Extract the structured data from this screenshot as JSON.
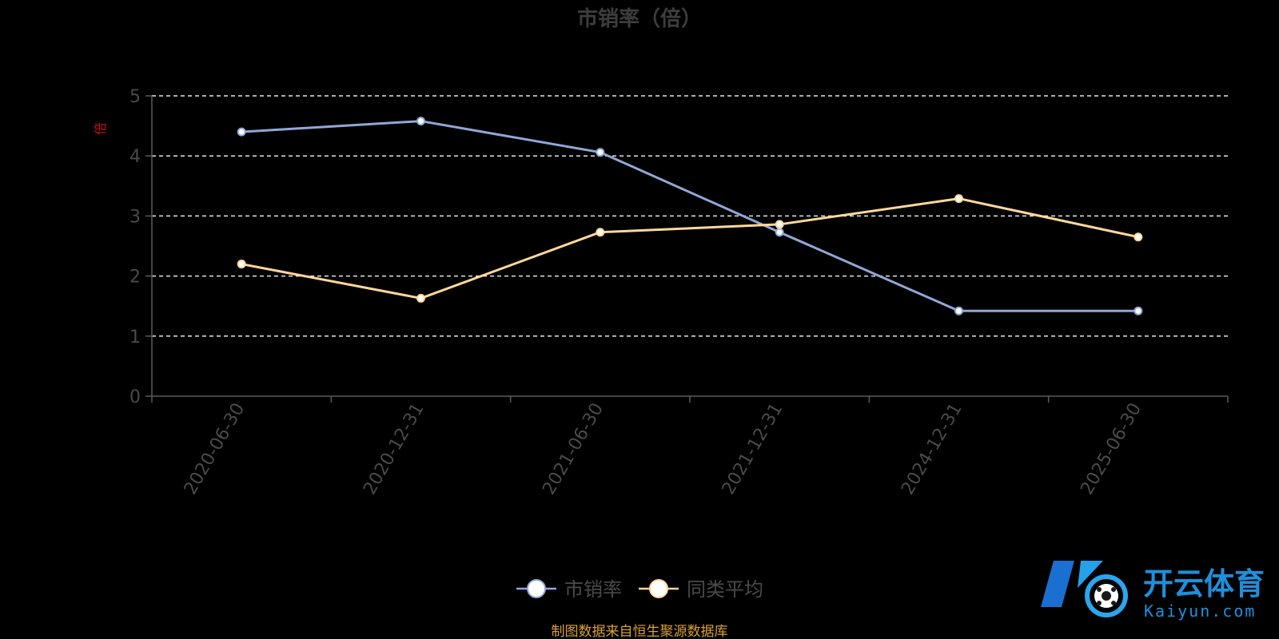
{
  "chart_data": {
    "type": "line",
    "title": "市销率（倍）",
    "ylabel": "倍",
    "xlabel": "",
    "categories": [
      "2020-06-30",
      "2020-12-31",
      "2021-06-30",
      "2021-12-31",
      "2024-12-31",
      "2025-06-30"
    ],
    "ylim": [
      0,
      5
    ],
    "yticks": [
      0,
      1,
      2,
      3,
      4,
      5
    ],
    "grid": true,
    "legend_position": "bottom",
    "series": [
      {
        "name": "市销率",
        "values": [
          4.4,
          4.58,
          4.06,
          2.73,
          1.42,
          1.42
        ],
        "color": "#8fa8d8"
      },
      {
        "name": "同类平均",
        "values": [
          2.2,
          1.63,
          2.73,
          2.86,
          3.29,
          2.65
        ],
        "color": "#ffd89a"
      }
    ]
  },
  "source_note": "制图数据来自恒生聚源数据库",
  "watermark": {
    "brand": "开云体育",
    "domain": "Kaiyun.com"
  },
  "colors": {
    "background": "#000000",
    "axis": "#5a5a5a",
    "grid": "#e6e6e6",
    "title": "#3d3d3d",
    "tick_text": "#4a4a4a",
    "ylabel": "#c01010",
    "source_note": "#d9a032",
    "watermark": "#1e8fdc"
  }
}
